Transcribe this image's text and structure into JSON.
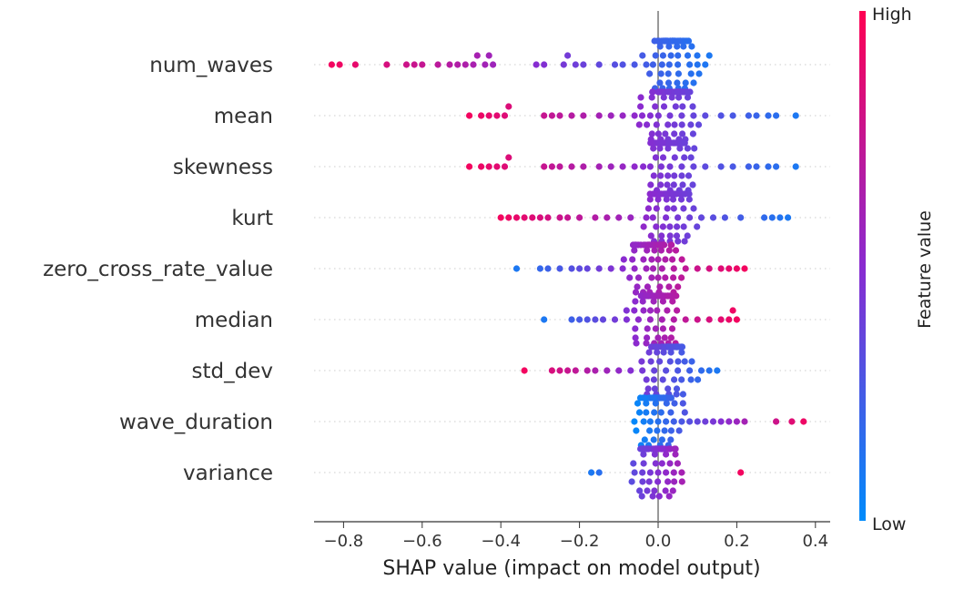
{
  "chart_data": {
    "type": "scatter",
    "subtype": "shap_beeswarm",
    "title": "",
    "xlabel": "SHAP value (impact on model output)",
    "ylabel": "",
    "xlim": [
      -0.88,
      0.43
    ],
    "xticks": [
      -0.8,
      -0.6,
      -0.4,
      -0.2,
      0.0,
      0.2,
      0.4
    ],
    "xtick_labels": [
      "−0.8",
      "−0.6",
      "−0.4",
      "−0.2",
      "0.0",
      "0.2",
      "0.4"
    ],
    "grid": "dotted horizontal lines per feature",
    "zero_line": 0,
    "colorbar": {
      "label": "Feature value",
      "high_label": "High",
      "low_label": "Low",
      "high_color": "#ff0052",
      "low_color": "#008bfb",
      "position": "right"
    },
    "features": [
      {
        "name": "num_waves",
        "min": -0.83,
        "max": 0.13,
        "high_side": "negative",
        "notable_points": [
          -0.83,
          -0.81,
          -0.77,
          -0.69,
          -0.64,
          -0.62,
          -0.6,
          -0.56,
          -0.53,
          -0.51,
          -0.49,
          -0.47,
          -0.46,
          -0.44,
          -0.43,
          -0.42,
          -0.31,
          -0.29,
          -0.24,
          -0.23,
          -0.21,
          -0.19,
          -0.15,
          -0.11,
          -0.09,
          -0.06,
          -0.03,
          0.01,
          0.05,
          0.08,
          0.1,
          0.12,
          0.13
        ]
      },
      {
        "name": "mean",
        "min": -0.48,
        "max": 0.35,
        "high_side": "negative",
        "notable_points": [
          -0.48,
          -0.45,
          -0.43,
          -0.41,
          -0.39,
          -0.38,
          -0.29,
          -0.27,
          -0.25,
          -0.22,
          -0.19,
          -0.15,
          -0.12,
          -0.09,
          -0.06,
          -0.02,
          0.03,
          0.06,
          0.09,
          0.12,
          0.16,
          0.19,
          0.23,
          0.25,
          0.28,
          0.3,
          0.35
        ]
      },
      {
        "name": "skewness",
        "min": -0.48,
        "max": 0.35,
        "high_side": "negative",
        "notable_points": [
          -0.48,
          -0.45,
          -0.43,
          -0.41,
          -0.39,
          -0.38,
          -0.29,
          -0.27,
          -0.25,
          -0.22,
          -0.19,
          -0.15,
          -0.12,
          -0.09,
          -0.06,
          -0.02,
          0.03,
          0.06,
          0.09,
          0.12,
          0.16,
          0.19,
          0.23,
          0.25,
          0.28,
          0.3,
          0.35
        ]
      },
      {
        "name": "kurt",
        "min": -0.4,
        "max": 0.33,
        "high_side": "negative",
        "notable_points": [
          -0.4,
          -0.38,
          -0.36,
          -0.34,
          -0.32,
          -0.3,
          -0.28,
          -0.25,
          -0.23,
          -0.2,
          -0.16,
          -0.13,
          -0.1,
          -0.07,
          -0.03,
          0.02,
          0.05,
          0.08,
          0.11,
          0.14,
          0.17,
          0.21,
          0.27,
          0.29,
          0.31,
          0.33
        ]
      },
      {
        "name": "zero_cross_rate_value",
        "min": -0.36,
        "max": 0.22,
        "high_side": "positive",
        "notable_points": [
          -0.36,
          -0.3,
          -0.28,
          -0.25,
          -0.22,
          -0.2,
          -0.18,
          -0.15,
          -0.12,
          -0.09,
          -0.06,
          -0.03,
          0.01,
          0.04,
          0.07,
          0.1,
          0.13,
          0.16,
          0.18,
          0.2,
          0.22
        ]
      },
      {
        "name": "median",
        "min": -0.29,
        "max": 0.2,
        "high_side": "positive",
        "notable_points": [
          -0.29,
          -0.22,
          -0.2,
          -0.18,
          -0.16,
          -0.14,
          -0.11,
          -0.08,
          -0.05,
          -0.02,
          0.01,
          0.04,
          0.07,
          0.1,
          0.13,
          0.16,
          0.18,
          0.19,
          0.2
        ]
      },
      {
        "name": "std_dev",
        "min": -0.34,
        "max": 0.15,
        "high_side": "negative",
        "notable_points": [
          -0.34,
          -0.27,
          -0.25,
          -0.23,
          -0.21,
          -0.18,
          -0.16,
          -0.13,
          -0.1,
          -0.07,
          -0.04,
          -0.01,
          0.02,
          0.05,
          0.08,
          0.11,
          0.13,
          0.15
        ]
      },
      {
        "name": "wave_duration",
        "min": -0.02,
        "max": 0.38,
        "high_side": "positive",
        "notable_points": [
          -0.02,
          -0.01,
          0.0,
          0.02,
          0.04,
          0.06,
          0.08,
          0.1,
          0.12,
          0.14,
          0.16,
          0.18,
          0.2,
          0.22,
          0.3,
          0.34,
          0.37
        ]
      },
      {
        "name": "variance",
        "min": -0.17,
        "max": 0.21,
        "high_side": "positive",
        "notable_points": [
          -0.17,
          -0.15,
          -0.06,
          -0.04,
          -0.02,
          0.0,
          0.01,
          0.02,
          0.03,
          0.04,
          0.06,
          0.21
        ]
      }
    ]
  }
}
